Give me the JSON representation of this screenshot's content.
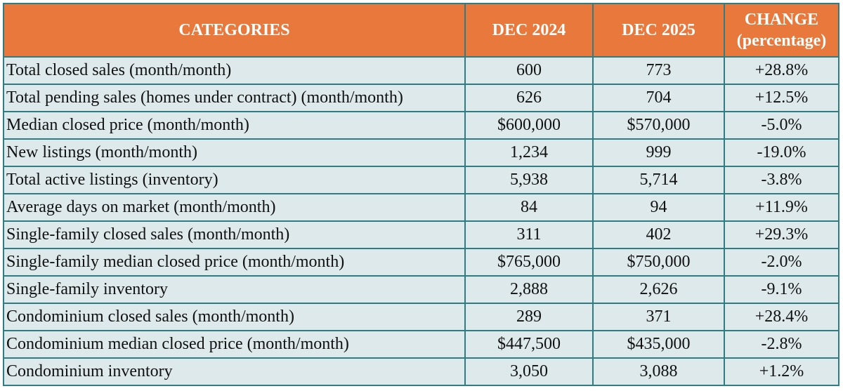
{
  "table": {
    "headers": [
      "CATEGORIES",
      "DEC 2024",
      "DEC 2025",
      "CHANGE (percentage)"
    ],
    "rows": [
      [
        "Total closed sales (month/month)",
        "600",
        "773",
        "+28.8%"
      ],
      [
        "Total pending sales (homes under contract) (month/month)",
        "626",
        "704",
        "+12.5%"
      ],
      [
        "Median closed price (month/month)",
        "$600,000",
        "$570,000",
        "-5.0%"
      ],
      [
        "New listings (month/month)",
        "1,234",
        "999",
        "-19.0%"
      ],
      [
        "Total active listings (inventory)",
        "5,938",
        "5,714",
        "-3.8%"
      ],
      [
        "Average days on market (month/month)",
        "84",
        "94",
        "+11.9%"
      ],
      [
        "Single-family closed sales (month/month)",
        "311",
        "402",
        "+29.3%"
      ],
      [
        "Single-family median closed price (month/month)",
        "$765,000",
        "$750,000",
        "-2.0%"
      ],
      [
        "Single-family inventory",
        "2,888",
        "2,626",
        "-9.1%"
      ],
      [
        "Condominium closed sales (month/month)",
        "289",
        "371",
        "+28.4%"
      ],
      [
        "Condominium median closed price (month/month)",
        "$447,500",
        "$435,000",
        "-2.8%"
      ],
      [
        "Condominium inventory",
        "3,050",
        "3,088",
        "+1.2%"
      ]
    ]
  }
}
